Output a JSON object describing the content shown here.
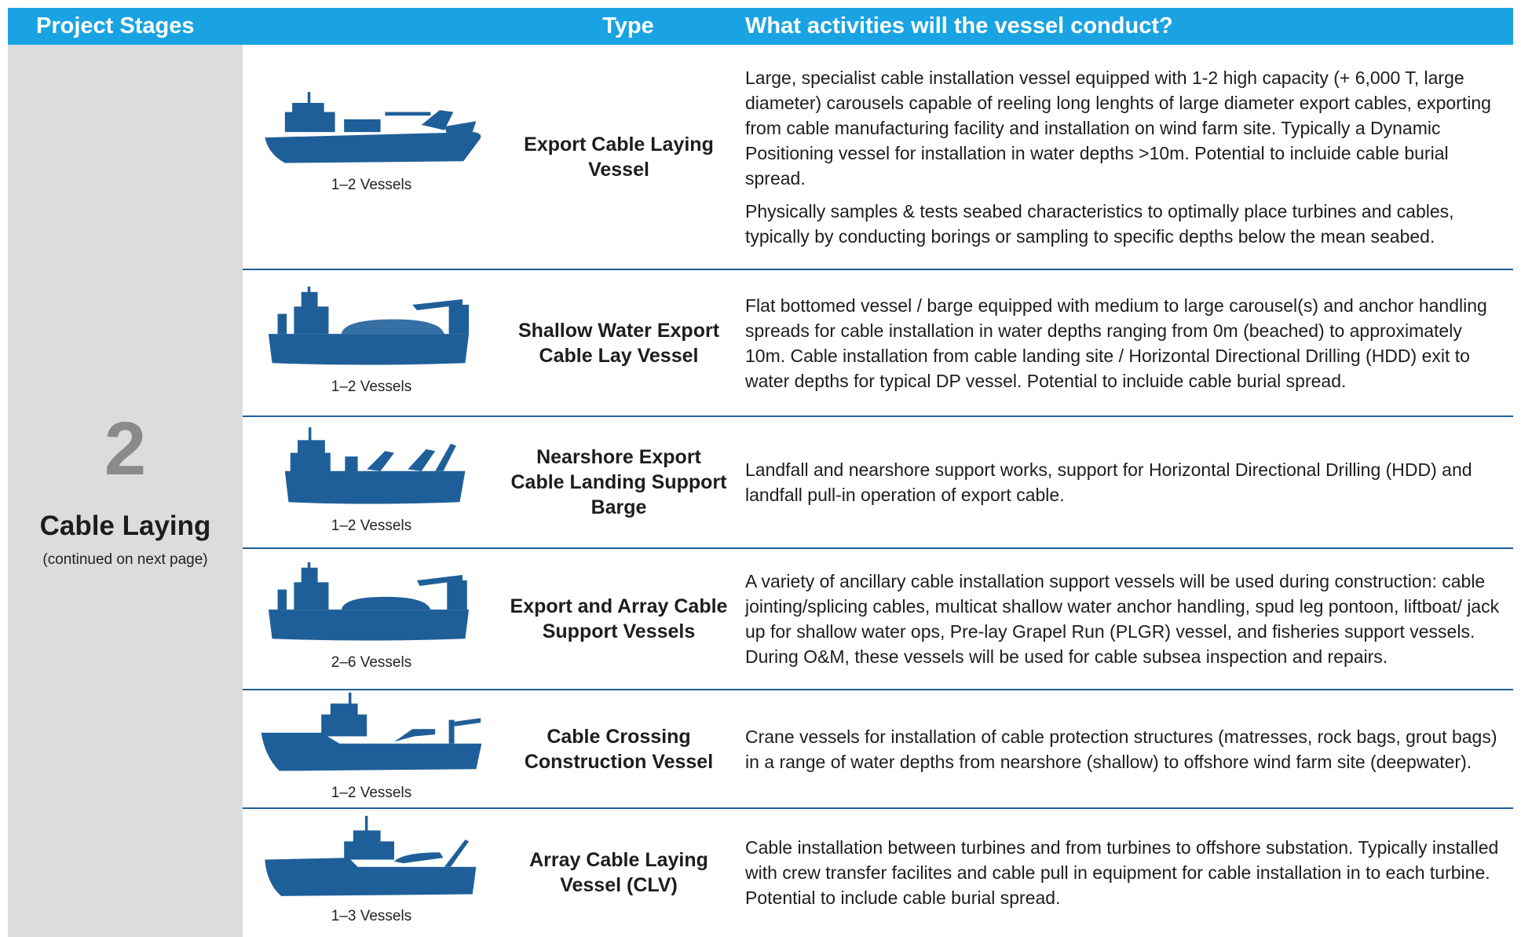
{
  "header": {
    "columns": [
      "Project Stages",
      "Type",
      "What activities will the vessel conduct?"
    ]
  },
  "stage": {
    "number": "2",
    "name": "Cable Laying",
    "note": "(continued on next page)"
  },
  "rows": [
    {
      "count": "1–2 Vessels",
      "type": "Export Cable Laying Vessel",
      "description": [
        "Large, specialist cable installation vessel equipped with 1-2 high capacity (+ 6,000 T, large diameter) carousels capable of reeling long lenghts of large diameter export cables, exporting from cable manufacturing facility and installation on wind farm site. Typically a Dynamic Positioning  vessel for installation in water depths >10m. Potential to incluide cable burial spread.",
        "Physically samples & tests seabed characteristics to optimally place turbines and cables, typically by conducting borings or sampling to specific depths below the mean seabed."
      ]
    },
    {
      "count": "1–2 Vessels",
      "type": "Shallow Water Export Cable Lay Vessel",
      "description": [
        "Flat bottomed vessel / barge equipped with medium to large carousel(s) and anchor handling spreads for cable installation in water depths ranging from 0m (beached) to  approximately 10m. Cable installation from cable landing site / Horizontal Directional Drilling (HDD) exit to water depths for typical DP vessel. Potential to incluide cable burial spread."
      ]
    },
    {
      "count": "1–2 Vessels",
      "type": "Nearshore Export Cable Landing Support Barge",
      "description": [
        "Landfall and nearshore support works, support for Horizontal Directional Drilling (HDD) and landfall pull-in operation of export cable."
      ]
    },
    {
      "count": "2–6 Vessels",
      "type": "Export and Array Cable Support Vessels",
      "description": [
        "A variety of ancillary cable installation support vessels will be used during construction:  cable jointing/splicing cables, multicat shallow water anchor handling, spud leg pontoon, liftboat/ jack up for shallow water ops, Pre-lay Grapel Run (PLGR) vessel, and fisheries support vessels. During O&M, these vessels will be used for cable subsea inspection and repairs."
      ]
    },
    {
      "count": "1–2 Vessels",
      "type": "Cable Crossing Construction Vessel",
      "description": [
        "Crane vessels for installation of cable protection structures (matresses, rock bags, grout bags) in a range of water depths from nearshore (shallow) to offshore wind farm site (deepwater)."
      ]
    },
    {
      "count": "1–3 Vessels",
      "type": "Array Cable Laying Vessel (CLV)",
      "description": [
        "Cable installation between turbines and from turbines to offshore substation. Typically installed with crew transfer facilites and cable pull in equipment for cable installation in to each turbine. Potential to include cable burial spread."
      ]
    }
  ]
}
